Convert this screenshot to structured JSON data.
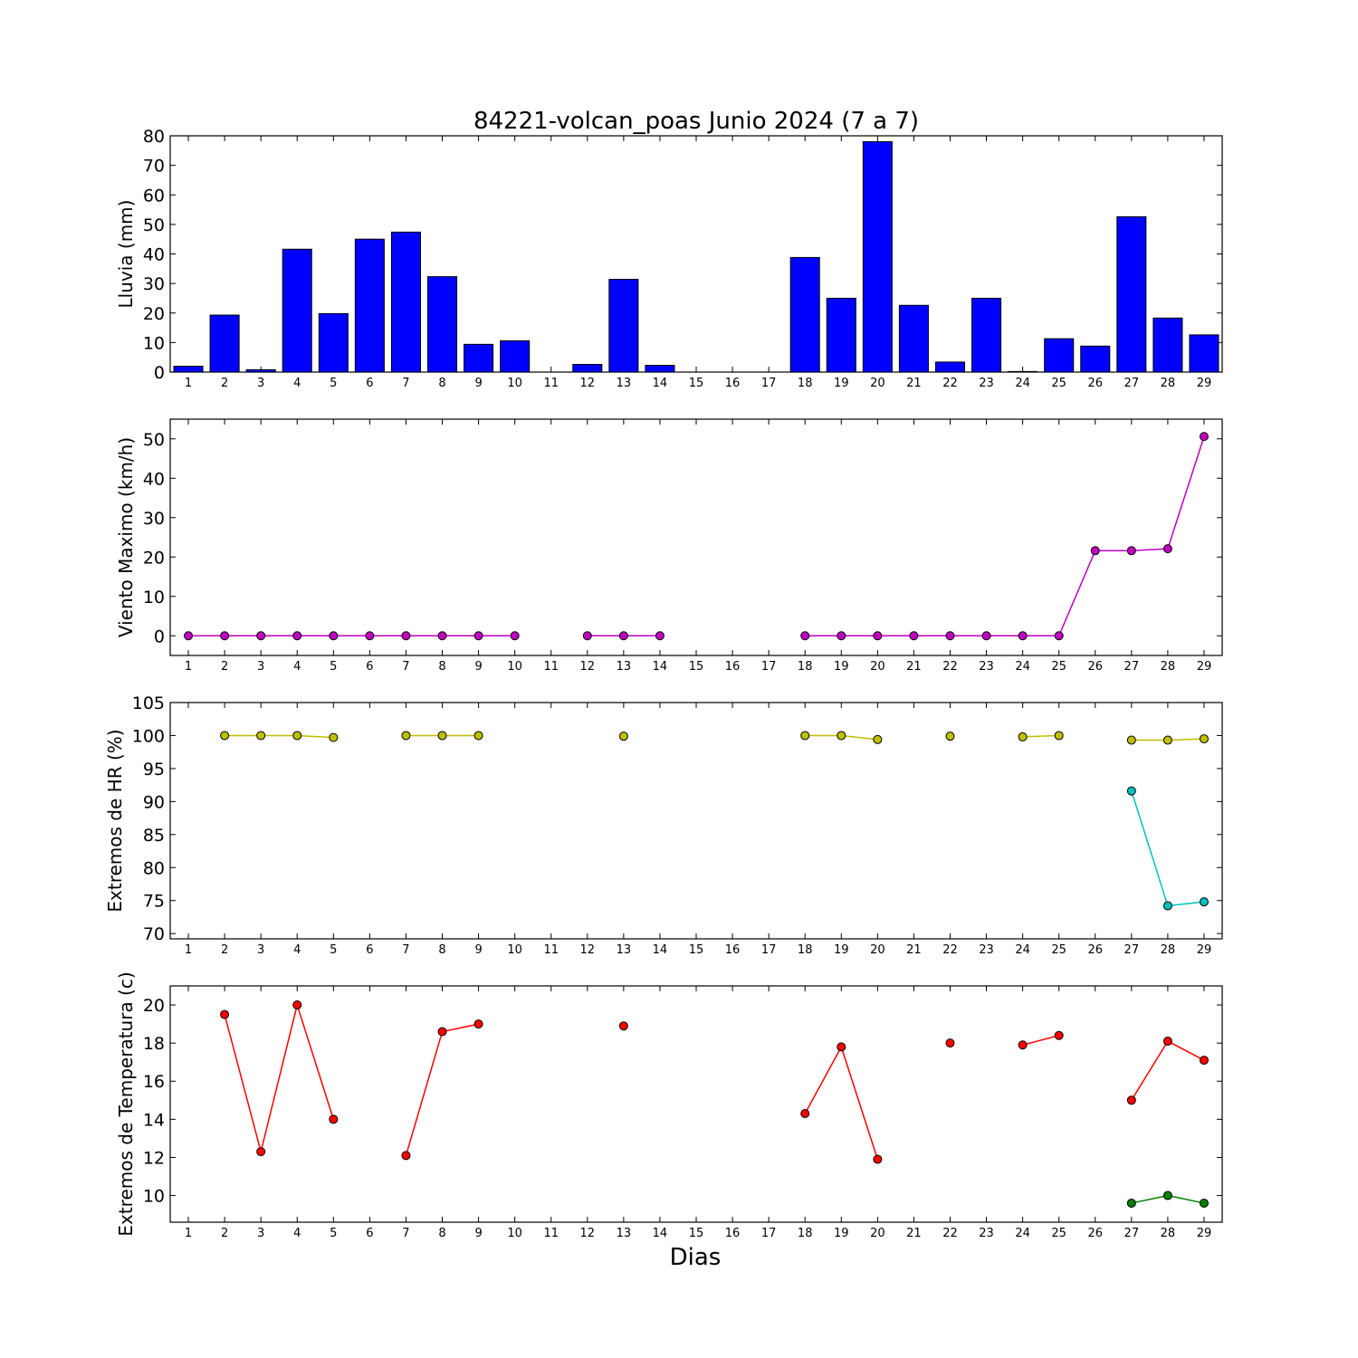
{
  "figure": {
    "title": "84221-volcan_poas Junio 2024  (7 a 7)",
    "xlabel": "Dias"
  },
  "chart_data": [
    {
      "type": "bar",
      "ylabel": "Lluvia (mm)",
      "ylim": [
        0,
        80
      ],
      "yticks": [
        0,
        10,
        20,
        30,
        40,
        50,
        60,
        70,
        80
      ],
      "categories": [
        1,
        2,
        3,
        4,
        5,
        6,
        7,
        8,
        9,
        10,
        11,
        12,
        13,
        14,
        15,
        16,
        17,
        18,
        19,
        20,
        21,
        22,
        23,
        24,
        25,
        26,
        27,
        28,
        29
      ],
      "values": [
        2.0,
        19.3,
        0.8,
        41.6,
        19.8,
        45.0,
        47.4,
        32.3,
        9.4,
        10.6,
        0,
        2.6,
        31.4,
        2.3,
        0,
        0,
        0,
        38.8,
        25.0,
        78.0,
        22.6,
        3.4,
        25.0,
        0.2,
        11.3,
        8.8,
        52.6,
        18.3,
        12.6
      ],
      "color": "#0000ff",
      "grid": false
    },
    {
      "type": "line",
      "ylabel": "Viento Maximo (km/h)",
      "ylim": [
        -5,
        55
      ],
      "yticks": [
        0,
        10,
        20,
        30,
        40,
        50
      ],
      "x": [
        1,
        2,
        3,
        4,
        5,
        6,
        7,
        8,
        9,
        10,
        11,
        12,
        13,
        14,
        15,
        16,
        17,
        18,
        19,
        20,
        21,
        22,
        23,
        24,
        25,
        26,
        27,
        28,
        29
      ],
      "series": [
        {
          "color": "#bf00bf",
          "values": [
            0,
            0,
            0,
            0,
            0,
            0,
            0,
            0,
            0,
            0,
            null,
            0,
            0,
            0,
            null,
            null,
            null,
            0,
            0,
            0,
            0,
            0,
            0,
            0,
            0,
            21.6,
            21.6,
            22.1,
            50.6
          ]
        }
      ],
      "grid": false
    },
    {
      "type": "line",
      "ylabel": "Extremos de HR (%)",
      "ylim": [
        69.2,
        105
      ],
      "yticks": [
        70,
        75,
        80,
        85,
        90,
        95,
        100,
        105
      ],
      "x": [
        1,
        2,
        3,
        4,
        5,
        6,
        7,
        8,
        9,
        10,
        11,
        12,
        13,
        14,
        15,
        16,
        17,
        18,
        19,
        20,
        21,
        22,
        23,
        24,
        25,
        26,
        27,
        28,
        29
      ],
      "series": [
        {
          "color": "#bfbf00",
          "values": [
            null,
            100,
            100,
            100,
            99.7,
            null,
            100,
            100,
            100,
            null,
            null,
            null,
            99.9,
            null,
            null,
            null,
            null,
            100,
            100,
            99.4,
            null,
            99.9,
            null,
            99.8,
            100,
            null,
            99.3,
            99.3,
            99.5
          ]
        },
        {
          "color": "#00bfbf",
          "values": [
            null,
            null,
            null,
            null,
            null,
            null,
            null,
            null,
            null,
            null,
            null,
            null,
            null,
            null,
            null,
            null,
            null,
            null,
            null,
            null,
            null,
            null,
            null,
            null,
            null,
            null,
            91.6,
            74.2,
            74.8
          ]
        }
      ],
      "grid": false
    },
    {
      "type": "line",
      "ylabel": "Extremos de Temperatura (c)",
      "ylim": [
        8.6,
        21
      ],
      "yticks": [
        10,
        12,
        14,
        16,
        18,
        20
      ],
      "x": [
        1,
        2,
        3,
        4,
        5,
        6,
        7,
        8,
        9,
        10,
        11,
        12,
        13,
        14,
        15,
        16,
        17,
        18,
        19,
        20,
        21,
        22,
        23,
        24,
        25,
        26,
        27,
        28,
        29
      ],
      "series": [
        {
          "color": "#ff0000",
          "values": [
            null,
            19.5,
            12.3,
            20.0,
            14.0,
            null,
            12.1,
            18.6,
            19.0,
            null,
            null,
            null,
            18.9,
            null,
            null,
            null,
            null,
            14.3,
            17.8,
            11.9,
            null,
            18.0,
            null,
            17.9,
            18.4,
            null,
            15.0,
            18.1,
            17.1
          ]
        },
        {
          "color": "#008000",
          "values": [
            null,
            null,
            null,
            null,
            null,
            null,
            null,
            null,
            null,
            null,
            null,
            null,
            null,
            null,
            null,
            null,
            null,
            null,
            null,
            null,
            null,
            null,
            null,
            null,
            null,
            null,
            9.6,
            10.0,
            9.6
          ]
        }
      ],
      "grid": false
    }
  ]
}
